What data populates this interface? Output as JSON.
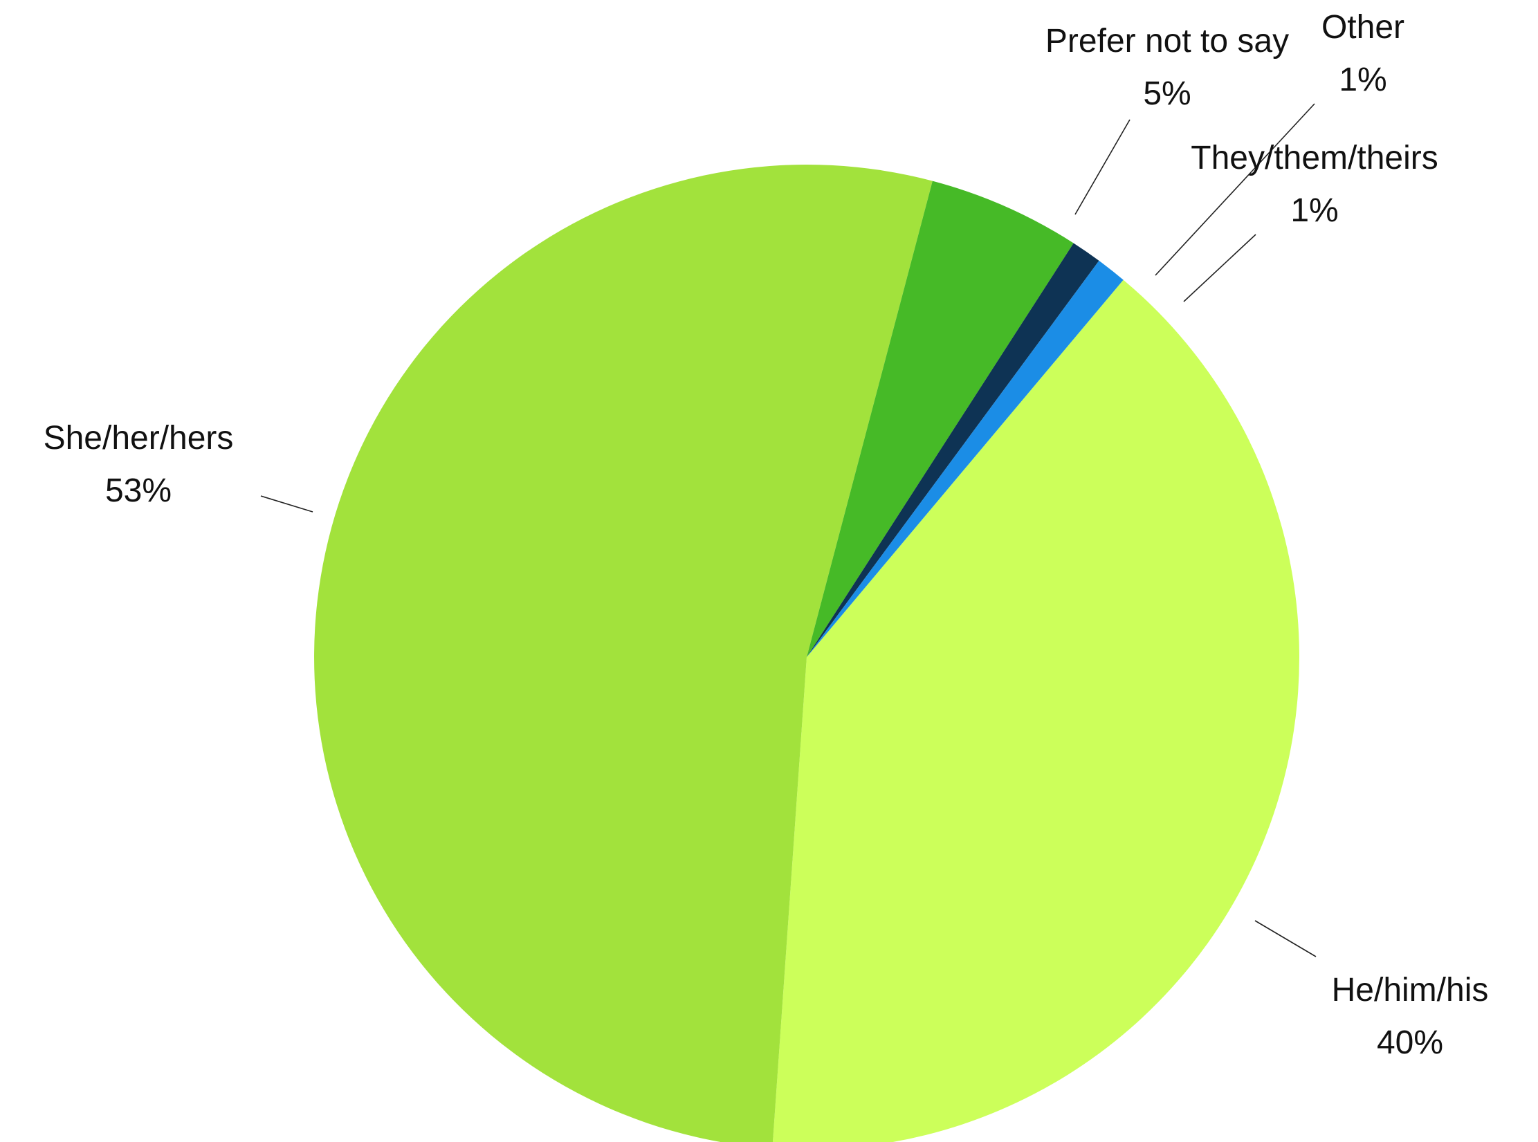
{
  "chart_data": {
    "type": "pie",
    "title": "",
    "slices": [
      {
        "label": "He/him/his",
        "percent_label": "40%",
        "value": 40,
        "color": "#ccff5a"
      },
      {
        "label": "She/her/hers",
        "percent_label": "53%",
        "value": 53,
        "color": "#a2e23c"
      },
      {
        "label": "Prefer not to say",
        "percent_label": "5%",
        "value": 5,
        "color": "#46ba27"
      },
      {
        "label": "Other",
        "percent_label": "1%",
        "value": 1,
        "color": "#0e3354"
      },
      {
        "label": "They/them/theirs",
        "percent_label": "1%",
        "value": 1,
        "color": "#1b8de6"
      }
    ],
    "start_angle_deg": 40,
    "direction": "clockwise",
    "legend": "none",
    "labels": "outside with leader lines"
  }
}
